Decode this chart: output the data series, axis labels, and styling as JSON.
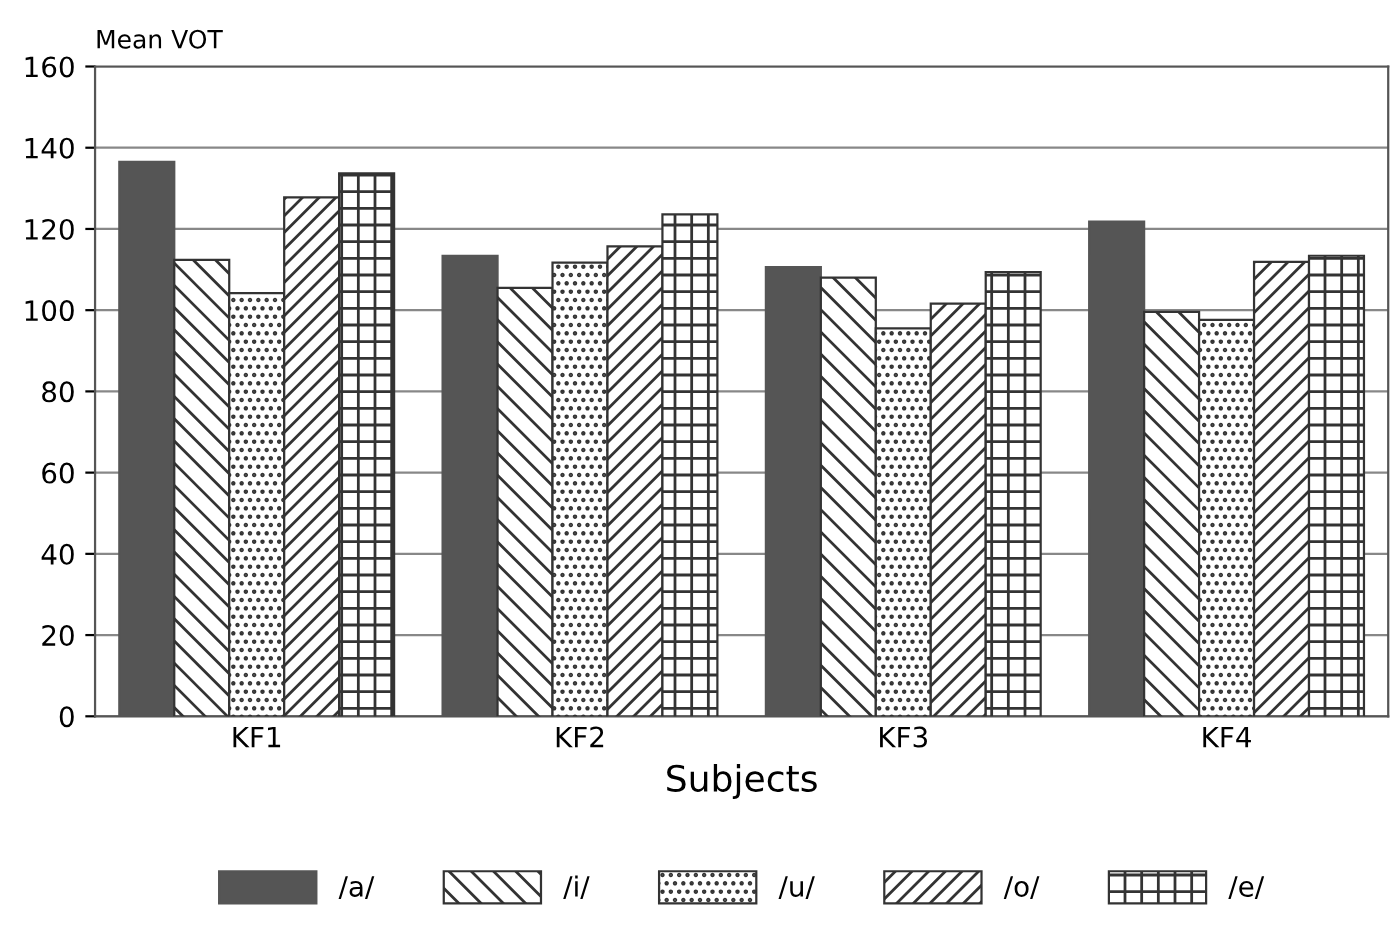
{
  "chart_data": {
    "type": "bar",
    "ylabel": "Mean VOT",
    "xlabel": "Subjects",
    "categories": [
      "KF1",
      "KF2",
      "KF3",
      "KF4"
    ],
    "series": [
      {
        "name": "/a/",
        "color": "#555555",
        "values": [
          136.5,
          113.4,
          110.6,
          121.8
        ]
      },
      {
        "name": "/i/",
        "color": "#333333",
        "values": [
          112.4,
          105.5,
          108,
          99.6
        ]
      },
      {
        "name": "/u/",
        "color": "#333333",
        "values": [
          104.2,
          111.7,
          95.5,
          97.6
        ]
      },
      {
        "name": "/o/",
        "color": "#333333",
        "values": [
          127.8,
          115.7,
          101.6,
          111.9
        ]
      },
      {
        "name": "/e/",
        "color": "#333333",
        "values": [
          133.7,
          123.6,
          109.4,
          113.4
        ]
      }
    ],
    "ylim": [
      0,
      160
    ],
    "yticks": [
      0,
      20,
      40,
      60,
      80,
      100,
      120,
      140,
      160
    ],
    "grid": "y",
    "legend": "bottom"
  }
}
